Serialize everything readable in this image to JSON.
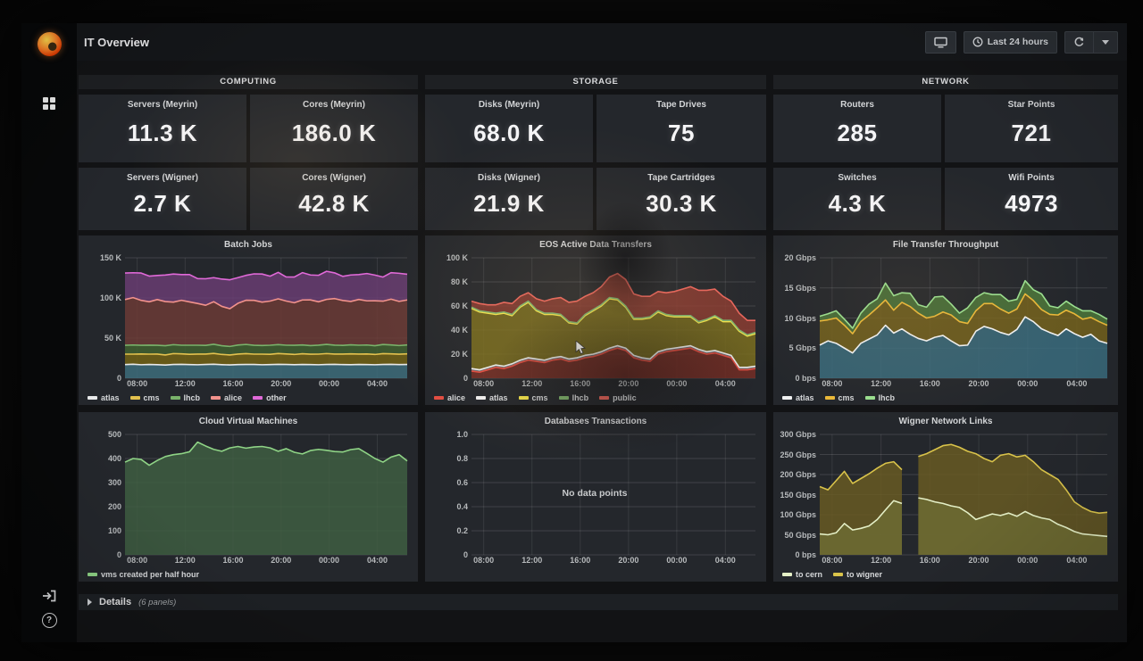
{
  "navbar": {
    "title": "IT Overview",
    "time_range": "Last 24 hours"
  },
  "icons": {
    "grafana_logo": "grafana-logo",
    "dashboards": "dashboards-grid-icon",
    "sign_in": "sign-in-icon",
    "help": "help-circle-icon",
    "tv_mode": "tv-mode-icon",
    "clock": "clock-icon",
    "refresh": "refresh-icon",
    "caret": "chevron-down-icon",
    "cursor": "mouse-cursor"
  },
  "colors": {
    "accent": "#f98128",
    "panel_bg": "#24272c",
    "page_bg": "#121315",
    "navbar_bg": "#141619",
    "grid_line": "rgba(255,255,255,0.13)"
  },
  "sections": [
    {
      "label": "COMPUTING",
      "stats": [
        {
          "title": "Servers (Meyrin)",
          "value": "11.3 K"
        },
        {
          "title": "Cores (Meyrin)",
          "value": "186.0 K"
        },
        {
          "title": "Servers (Wigner)",
          "value": "2.7 K"
        },
        {
          "title": "Cores (Wigner)",
          "value": "42.8 K"
        }
      ]
    },
    {
      "label": "STORAGE",
      "stats": [
        {
          "title": "Disks (Meyrin)",
          "value": "68.0 K"
        },
        {
          "title": "Tape Drives",
          "value": "75"
        },
        {
          "title": "Disks (Wigner)",
          "value": "21.9 K"
        },
        {
          "title": "Tape Cartridges",
          "value": "30.3 K"
        }
      ]
    },
    {
      "label": "NETWORK",
      "stats": [
        {
          "title": "Routers",
          "value": "285"
        },
        {
          "title": "Star Points",
          "value": "721"
        },
        {
          "title": "Switches",
          "value": "4.3 K"
        },
        {
          "title": "Wifi Points",
          "value": "4973"
        }
      ]
    }
  ],
  "chart_data": [
    {
      "type": "area",
      "title": "Batch Jobs",
      "stacked": true,
      "ylim": [
        0,
        150
      ],
      "yticks": [
        [
          0,
          "0"
        ],
        [
          50,
          "50 K"
        ],
        [
          100,
          "100 K"
        ],
        [
          150,
          "150 K"
        ]
      ],
      "xticks": [
        [
          0.043,
          "08:00"
        ],
        [
          0.213,
          "12:00"
        ],
        [
          0.383,
          "16:00"
        ],
        [
          0.553,
          "20:00"
        ],
        [
          0.723,
          "00:00"
        ],
        [
          0.894,
          "04:00"
        ]
      ],
      "legend_position": "bottom",
      "grid": true,
      "unit": "jobs (K)",
      "series": [
        {
          "name": "atlas",
          "color": "#e8e9ea",
          "fill": "#3e6f7e",
          "values": [
            17,
            17.4,
            16.8,
            17.2,
            16.9,
            16.5,
            17.1,
            17.3,
            17,
            16.8,
            17.2,
            17.4,
            16.9,
            16.6,
            17,
            17.2,
            17.1,
            16.8,
            17,
            17.3,
            17.1,
            16.9,
            17.2,
            17,
            16.8,
            17.1,
            17.3,
            17,
            16.9,
            17.2,
            17,
            16.8,
            17.1,
            17.3,
            17,
            17.1
          ]
        },
        {
          "name": "cms",
          "color": "#e3c14e",
          "fill": "#756414",
          "values": [
            13,
            12.6,
            13.4,
            12.8,
            13.2,
            12.5,
            13.6,
            13.1,
            12.8,
            13.3,
            12.9,
            13.5,
            12.7,
            12.4,
            13.1,
            13.4,
            12.9,
            13.2,
            12.8,
            13.5,
            13.1,
            12.7,
            13.3,
            12.9,
            13.2,
            13.6,
            12.8,
            13.1,
            13.4,
            12.9,
            13.2,
            12.8,
            13.5,
            13.1,
            12.9,
            13.2
          ]
        },
        {
          "name": "lhcb",
          "color": "#79b26a",
          "fill": "#42622f",
          "values": [
            11,
            11.4,
            10.8,
            11.2,
            10.9,
            11.5,
            11.1,
            10.7,
            11.3,
            11,
            10.8,
            11.4,
            10.9,
            10.6,
            11.2,
            11.5,
            11,
            10.8,
            11.3,
            11.1,
            10.9,
            11.4,
            11,
            10.7,
            11.2,
            11.5,
            11.1,
            10.8,
            11.3,
            11,
            11.2,
            10.9,
            11.4,
            11.1,
            10.8,
            11.2
          ]
        },
        {
          "name": "alice",
          "color": "#f2928c",
          "fill": "#6e3a36",
          "values": [
            57,
            59,
            56,
            54,
            57,
            55,
            53,
            56,
            54,
            52,
            50,
            53,
            49,
            47,
            52,
            55,
            56,
            54,
            55,
            57,
            55,
            53,
            56,
            57,
            54,
            56,
            58,
            56,
            54,
            57,
            55,
            56,
            54,
            57,
            55,
            56
          ]
        },
        {
          "name": "other",
          "color": "#e069d8",
          "fill": "#6b3d74",
          "values": [
            33,
            31,
            34,
            32,
            30,
            33,
            35,
            32,
            34,
            31,
            33,
            30,
            34,
            36,
            32,
            31,
            33,
            35,
            31,
            33,
            30,
            32,
            34,
            31,
            33,
            35,
            32,
            30,
            33,
            31,
            34,
            32,
            30,
            33,
            35,
            32
          ]
        }
      ]
    },
    {
      "type": "area",
      "title": "EOS Active Data Transfers",
      "stacked": true,
      "ylim": [
        0,
        100
      ],
      "yticks": [
        [
          0,
          "0"
        ],
        [
          20,
          "20 K"
        ],
        [
          40,
          "40 K"
        ],
        [
          60,
          "60 K"
        ],
        [
          80,
          "80 K"
        ],
        [
          100,
          "100 K"
        ]
      ],
      "xticks": [
        [
          0.043,
          "08:00"
        ],
        [
          0.213,
          "12:00"
        ],
        [
          0.383,
          "16:00"
        ],
        [
          0.553,
          "20:00"
        ],
        [
          0.723,
          "00:00"
        ],
        [
          0.894,
          "04:00"
        ]
      ],
      "legend_position": "bottom",
      "grid": true,
      "unit": "transfers (K)",
      "series": [
        {
          "name": "alice",
          "color": "#e24d42",
          "fill": "#7a2d25",
          "values": [
            6,
            5,
            7,
            9,
            8,
            10,
            13,
            15,
            14,
            13,
            15,
            16,
            14,
            15,
            17,
            18,
            20,
            23,
            25,
            23,
            17,
            15,
            14,
            20,
            22,
            23,
            24,
            25,
            22,
            20,
            21,
            19,
            17,
            7,
            7,
            8
          ]
        },
        {
          "name": "atlas",
          "color": "#efefef",
          "fill": "#77797b",
          "values": [
            2,
            2,
            2,
            2,
            2,
            2,
            2,
            2,
            2,
            2,
            2,
            2,
            2,
            2,
            2,
            2,
            2,
            2,
            2,
            2,
            2,
            2,
            2,
            2,
            2,
            2,
            2,
            2,
            2,
            2,
            2,
            2,
            2,
            2,
            2,
            2
          ]
        },
        {
          "name": "cms",
          "color": "#f2e34c",
          "fill": "#7d6f1d",
          "values": [
            50,
            48,
            45,
            42,
            44,
            40,
            44,
            46,
            40,
            38,
            36,
            34,
            30,
            28,
            33,
            36,
            38,
            41,
            38,
            34,
            30,
            32,
            34,
            33,
            28,
            26,
            25,
            24,
            22,
            26,
            28,
            26,
            28,
            30,
            26,
            27
          ]
        },
        {
          "name": "lhcb",
          "color": "#7eb26d",
          "fill": "#4a6b33",
          "values": [
            1,
            1,
            1,
            1,
            1,
            1,
            1,
            1,
            1,
            1,
            1,
            1,
            1,
            1,
            1,
            1,
            1,
            1,
            1,
            1,
            1,
            1,
            1,
            1,
            1,
            1,
            1,
            1,
            1,
            1,
            1,
            1,
            1,
            1,
            1,
            1
          ]
        },
        {
          "name": "public",
          "color": "#e8655c",
          "fill": "#8c3a31",
          "values": [
            5,
            6,
            6,
            7,
            8,
            9,
            8,
            7,
            9,
            10,
            12,
            14,
            16,
            18,
            15,
            14,
            15,
            17,
            21,
            22,
            20,
            18,
            17,
            16,
            18,
            20,
            22,
            24,
            26,
            24,
            22,
            20,
            16,
            14,
            12,
            10
          ]
        }
      ]
    },
    {
      "type": "area",
      "title": "File Transfer Throughput",
      "stacked": true,
      "ylim": [
        0,
        20
      ],
      "yticks": [
        [
          0,
          "0 bps"
        ],
        [
          5,
          "5 Gbps"
        ],
        [
          10,
          "10 Gbps"
        ],
        [
          15,
          "15 Gbps"
        ],
        [
          20,
          "20 Gbps"
        ]
      ],
      "xticks": [
        [
          0.043,
          "08:00"
        ],
        [
          0.213,
          "12:00"
        ],
        [
          0.383,
          "16:00"
        ],
        [
          0.553,
          "20:00"
        ],
        [
          0.723,
          "00:00"
        ],
        [
          0.894,
          "04:00"
        ]
      ],
      "legend_position": "bottom",
      "grid": true,
      "unit": "Gbps",
      "series": [
        {
          "name": "atlas",
          "color": "#f0f1f2",
          "fill": "#3b6e80",
          "values": [
            5.5,
            6.2,
            5.8,
            5,
            4.2,
            5.8,
            6.5,
            7.2,
            8.8,
            7.5,
            8.2,
            7.3,
            6.6,
            6.2,
            6.8,
            7.1,
            6.2,
            5.4,
            5.5,
            7.8,
            8.6,
            8.2,
            7.6,
            7.2,
            8.1,
            10.2,
            9.4,
            8.2,
            7.6,
            7.1,
            8.2,
            7.4,
            6.8,
            7.3,
            6.2,
            5.8
          ]
        },
        {
          "name": "cms",
          "color": "#eab839",
          "fill": "#78641c",
          "values": [
            4,
            3.5,
            4.2,
            3.8,
            3.2,
            3.6,
            4,
            4.5,
            4.2,
            3.8,
            4.4,
            4.6,
            4.2,
            3.8,
            3.5,
            3.9,
            4.3,
            4,
            3.6,
            3.4,
            3.8,
            4.2,
            3.9,
            3.6,
            3.4,
            3.8,
            3.5,
            3.2,
            3,
            3.4,
            3.1,
            3.3,
            3,
            2.8,
            3.2,
            3
          ]
        },
        {
          "name": "lhcb",
          "color": "#9adf8f",
          "fill": "#4e7a3a",
          "values": [
            0.8,
            1,
            1.2,
            1,
            0.9,
            1.4,
            1.8,
            1.5,
            2.8,
            2.4,
            1.6,
            2.2,
            1.4,
            1.8,
            3.2,
            2.6,
            1.8,
            1.4,
            2.6,
            2.2,
            1.8,
            1.5,
            2.4,
            2,
            1.6,
            2.2,
            1.8,
            2.6,
            1.4,
            1.2,
            1.5,
            1.2,
            1.4,
            1.1,
            1.2,
            1
          ]
        }
      ]
    },
    {
      "type": "area",
      "title": "Cloud Virtual Machines",
      "stacked": false,
      "ylim": [
        0,
        500
      ],
      "yticks": [
        [
          0,
          "0"
        ],
        [
          100,
          "100"
        ],
        [
          200,
          "200"
        ],
        [
          300,
          "300"
        ],
        [
          400,
          "400"
        ],
        [
          500,
          "500"
        ]
      ],
      "xticks": [
        [
          0.043,
          "08:00"
        ],
        [
          0.213,
          "12:00"
        ],
        [
          0.383,
          "16:00"
        ],
        [
          0.553,
          "20:00"
        ],
        [
          0.723,
          "00:00"
        ],
        [
          0.894,
          "04:00"
        ]
      ],
      "legend_position": "bottom",
      "grid": true,
      "unit": "vms",
      "series": [
        {
          "name": "vms created per half hour",
          "color": "#8fd486",
          "fill": "#3f5f42",
          "values": [
            385,
            400,
            396,
            372,
            392,
            408,
            416,
            420,
            428,
            468,
            452,
            438,
            430,
            444,
            450,
            443,
            448,
            450,
            444,
            430,
            441,
            426,
            419,
            433,
            438,
            434,
            429,
            427,
            437,
            441,
            421,
            400,
            385,
            406,
            416,
            390
          ]
        }
      ]
    },
    {
      "type": "area",
      "title": "Databases Transactions",
      "stacked": false,
      "ylim": [
        0,
        1
      ],
      "yticks": [
        [
          0,
          "0"
        ],
        [
          0.2,
          "0.2"
        ],
        [
          0.4,
          "0.4"
        ],
        [
          0.6,
          "0.6"
        ],
        [
          0.8,
          "0.8"
        ],
        [
          1,
          "1.0"
        ]
      ],
      "xticks": [
        [
          0.043,
          "08:00"
        ],
        [
          0.213,
          "12:00"
        ],
        [
          0.383,
          "16:00"
        ],
        [
          0.553,
          "20:00"
        ],
        [
          0.723,
          "00:00"
        ],
        [
          0.894,
          "04:00"
        ]
      ],
      "legend_position": "none",
      "grid": true,
      "no_data": "No data points",
      "series": []
    },
    {
      "type": "area",
      "title": "Wigner Network Links",
      "stacked": false,
      "ylim": [
        0,
        300
      ],
      "yticks": [
        [
          0,
          "0 bps"
        ],
        [
          50,
          "50 Gbps"
        ],
        [
          100,
          "100 Gbps"
        ],
        [
          150,
          "150 Gbps"
        ],
        [
          200,
          "200 Gbps"
        ],
        [
          250,
          "250 Gbps"
        ],
        [
          300,
          "300 Gbps"
        ]
      ],
      "xticks": [
        [
          0.043,
          "08:00"
        ],
        [
          0.213,
          "12:00"
        ],
        [
          0.383,
          "16:00"
        ],
        [
          0.553,
          "20:00"
        ],
        [
          0.723,
          "00:00"
        ],
        [
          0.894,
          "04:00"
        ]
      ],
      "legend_position": "bottom",
      "grid": true,
      "unit": "Gbps",
      "series": [
        {
          "name": "to cern",
          "color": "#e4efc6",
          "fill": "#6d6b33",
          "values": [
            52,
            50,
            55,
            78,
            62,
            66,
            72,
            88,
            112,
            135,
            128,
            null,
            142,
            138,
            132,
            128,
            122,
            118,
            105,
            88,
            95,
            102,
            98,
            104,
            96,
            108,
            98,
            92,
            88,
            76,
            68,
            58,
            52,
            50,
            48,
            46
          ]
        },
        {
          "name": "to wigner",
          "color": "#d9c34a",
          "fill": "#6a5c22",
          "values": [
            170,
            162,
            185,
            208,
            178,
            190,
            202,
            216,
            228,
            232,
            212,
            null,
            245,
            252,
            262,
            272,
            275,
            268,
            258,
            252,
            240,
            232,
            248,
            252,
            244,
            248,
            232,
            212,
            200,
            188,
            162,
            132,
            118,
            108,
            104,
            106
          ]
        }
      ]
    }
  ],
  "details": {
    "label": "Details",
    "count_label": "(6 panels)"
  }
}
